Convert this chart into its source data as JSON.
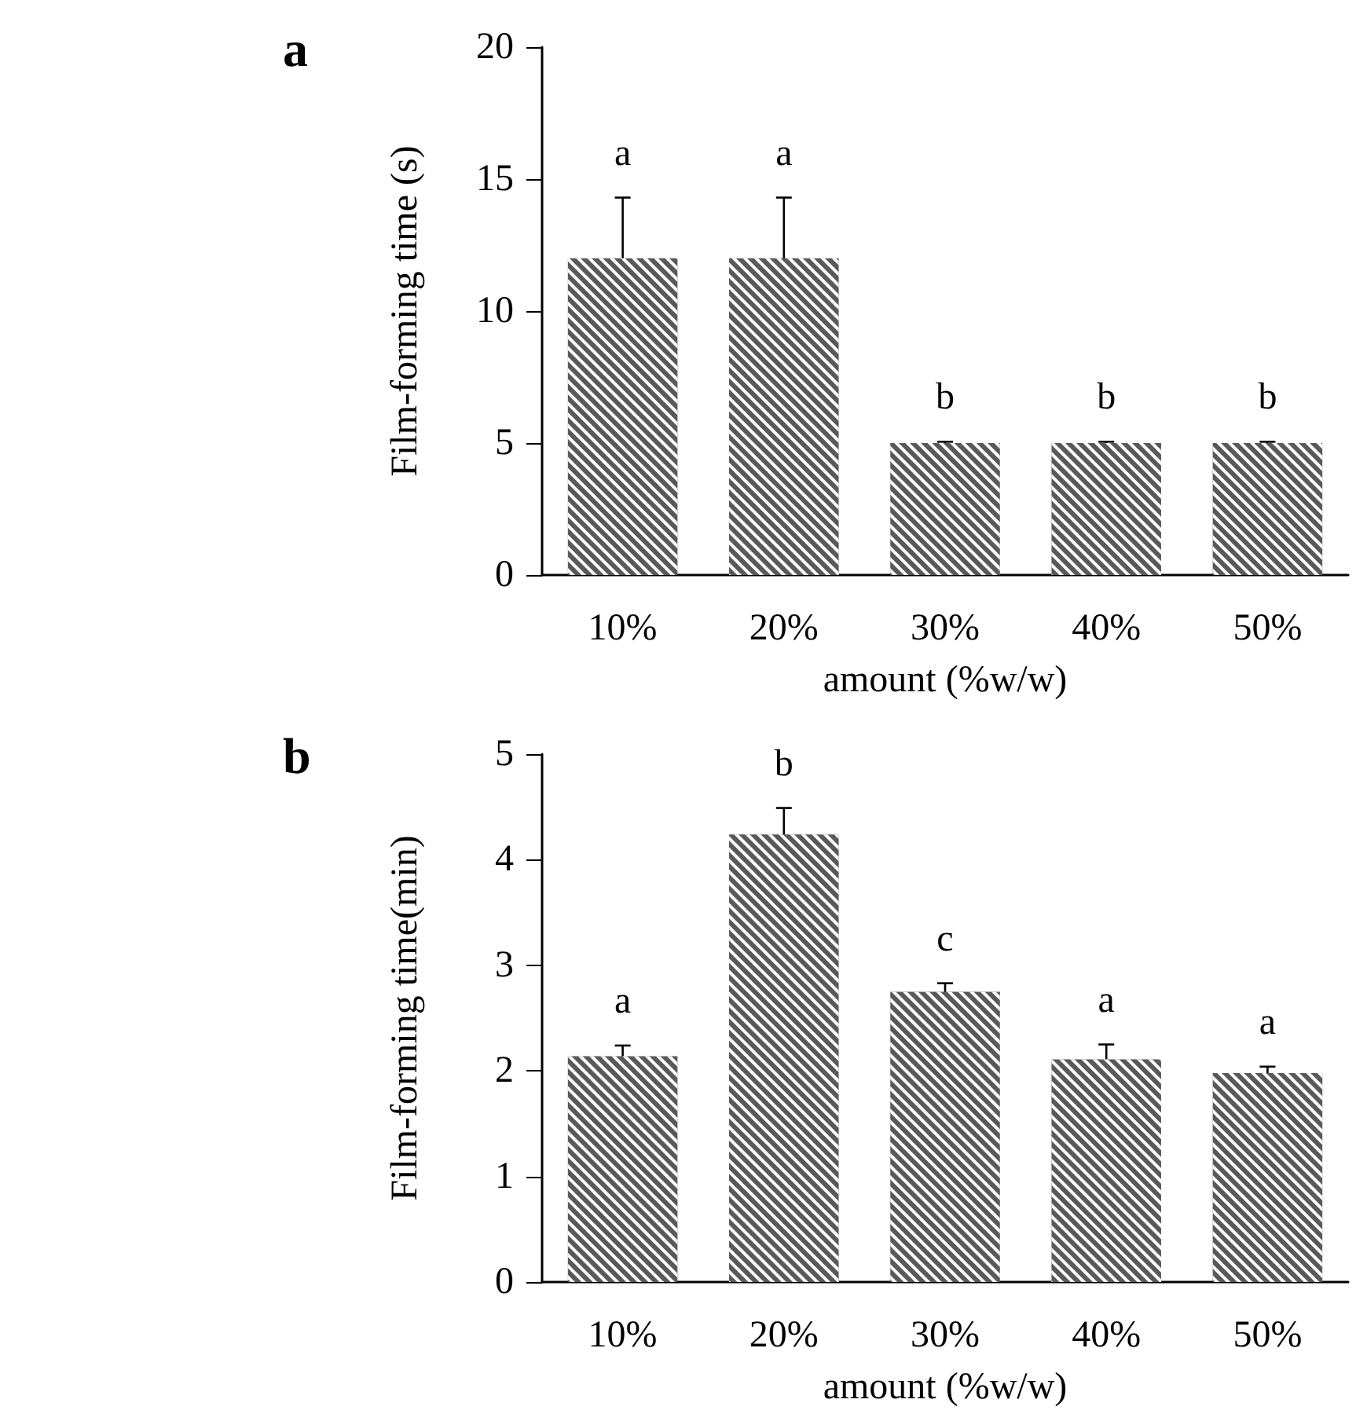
{
  "chart_data": [
    {
      "type": "bar",
      "title": "a",
      "xlabel": "amount (%w/w)",
      "ylabel": "Film-forming time (s)",
      "categories": [
        "10%",
        "20%",
        "30%",
        "40%",
        "50%"
      ],
      "series": [
        {
          "color": "#595959",
          "values": [
            12,
            12,
            5,
            5,
            5
          ],
          "errors": [
            2.3,
            2.3,
            0.05,
            0.05,
            0.05
          ]
        }
      ],
      "ylim": [
        0,
        20
      ],
      "yticks": [
        0,
        5,
        10,
        15,
        20
      ],
      "grid": false,
      "annotations": [
        "a",
        "a",
        "b",
        "b",
        "b"
      ]
    },
    {
      "type": "bar",
      "title": "b",
      "xlabel": "amount (%w/w)",
      "ylabel": "Film-forming time(min)",
      "categories": [
        "10%",
        "20%",
        "30%",
        "40%",
        "50%"
      ],
      "series": [
        {
          "color": "#595959",
          "values": [
            2.14,
            4.24,
            2.75,
            2.11,
            1.98
          ],
          "errors": [
            0.1,
            0.25,
            0.08,
            0.14,
            0.06
          ]
        }
      ],
      "ylim": [
        0,
        5
      ],
      "yticks": [
        0,
        1,
        2,
        3,
        4,
        5
      ],
      "grid": false,
      "annotations": [
        "a",
        "b",
        "c",
        "a",
        "a"
      ]
    }
  ]
}
